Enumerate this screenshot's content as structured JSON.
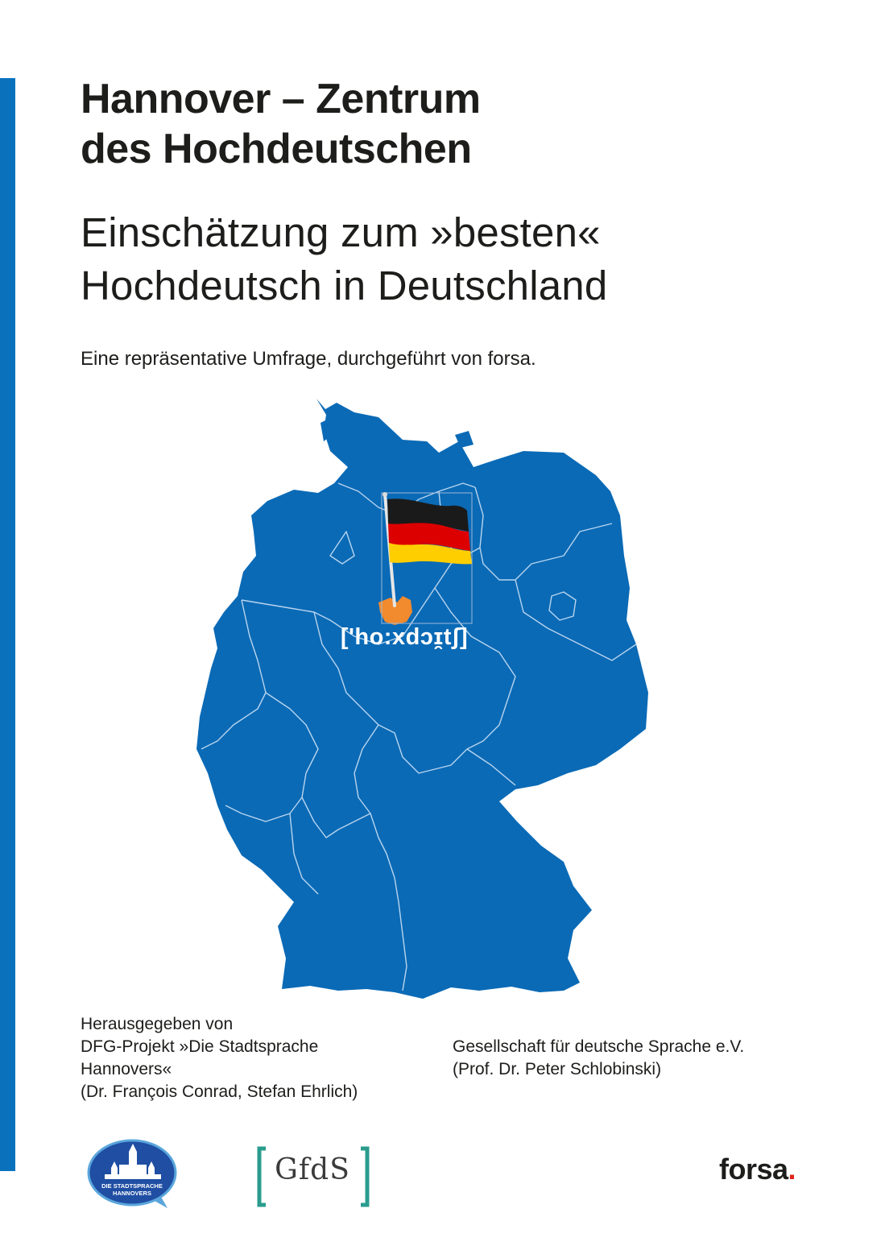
{
  "cover": {
    "title_lines": [
      "Hannover – Zentrum",
      "des Hochdeutschen"
    ],
    "subtitle_lines": [
      "Einschätzung zum »besten«",
      "Hochdeutsch in Deutschland"
    ],
    "intro": "Eine repräsentative Umfrage, durchgeführt von forsa."
  },
  "map": {
    "phonetic": "['ho:xdɔɪ̯tʃ]",
    "highlight_region": "Hannover",
    "flag_colors": [
      "#1a1a1a",
      "#dd0000",
      "#ffce00"
    ],
    "country_color": "#0a6ab6",
    "highlight_color": "#f28a2e"
  },
  "credits": {
    "editors_lines": [
      "Herausgegeben von",
      "DFG-Projekt »Die Stadtsprache",
      "Hannovers«",
      "(Dr. François Conrad, Stefan Ehrlich)"
    ],
    "gfds_lines": [
      "Gesellschaft für deutsche Sprache e.V.",
      "(Prof. Dr. Peter Schlobinski)"
    ]
  },
  "logos": {
    "stadtsprache_lines": [
      "DIE STADTSPRACHE",
      "HANNOVERS"
    ],
    "gfds": "GfdS",
    "forsa": "forsa",
    "forsa_dot": "."
  },
  "colors": {
    "accent_blue": "#0a72bd",
    "text": "#1d1d1b",
    "gfds_teal": "#2a9c8e",
    "forsa_red": "#e2231a"
  }
}
